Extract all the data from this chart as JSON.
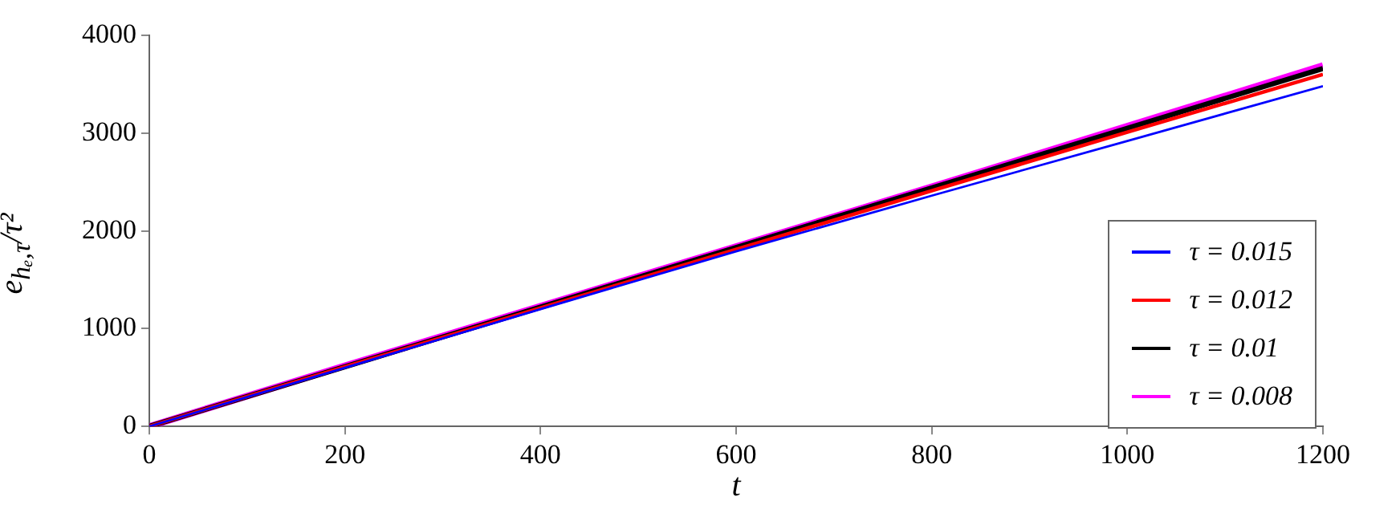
{
  "chart_data": {
    "type": "line",
    "xlabel": "t",
    "ylabel": "e$_{hₑ,τ}$/τ²",
    "x": [
      0,
      200,
      400,
      600,
      800,
      1000,
      1200
    ],
    "series": [
      {
        "name": "τ = 0.015",
        "color": "#0000ff",
        "values": [
          0,
          600,
          1200,
          1790,
          2360,
          2920,
          3480
        ]
      },
      {
        "name": "τ = 0.012",
        "color": "#ff0000",
        "values": [
          0,
          610,
          1210,
          1810,
          2410,
          3010,
          3600
        ]
      },
      {
        "name": "τ = 0.01",
        "color": "#000000",
        "values": [
          0,
          610,
          1220,
          1830,
          2440,
          3050,
          3660
        ]
      },
      {
        "name": "τ = 0.008",
        "color": "#ff00ff",
        "values": [
          0,
          620,
          1230,
          1840,
          2450,
          3070,
          3690
        ]
      }
    ],
    "xlim": [
      0,
      1200
    ],
    "xticks": [
      0,
      200,
      400,
      600,
      800,
      1000,
      1200
    ],
    "ylim": [
      0,
      4000
    ],
    "yticks": [
      0,
      1000,
      2000,
      3000,
      4000
    ],
    "grid": false,
    "legend": "bottom right",
    "marker": "none",
    "line_style": "solid"
  }
}
